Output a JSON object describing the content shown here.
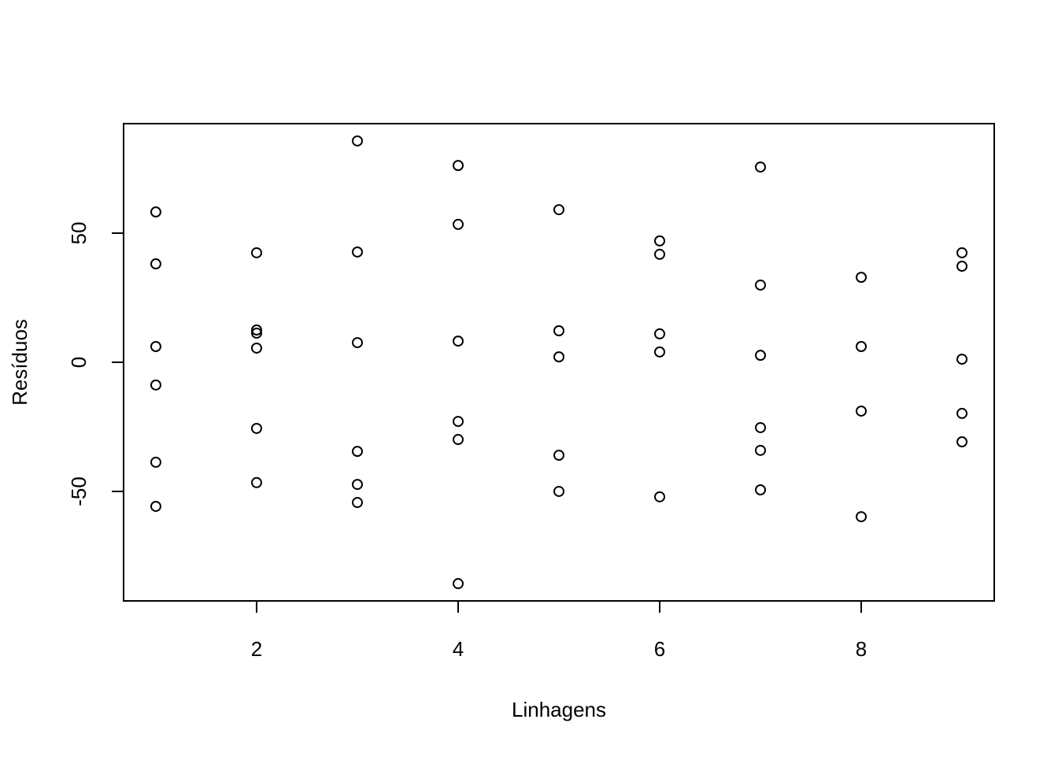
{
  "chart_data": {
    "type": "scatter",
    "x_label": "Linhagens",
    "y_label": "Resíduos",
    "x": [
      1,
      1,
      1,
      1,
      1,
      1,
      2,
      2,
      2,
      2,
      2,
      2,
      3,
      3,
      3,
      3,
      3,
      3,
      4,
      4,
      4,
      4,
      4,
      4,
      5,
      5,
      5,
      5,
      5,
      6,
      6,
      6,
      6,
      6,
      7,
      7,
      7,
      7,
      7,
      7,
      8,
      8,
      8,
      8,
      9,
      9,
      9,
      9,
      9
    ],
    "y": [
      58.2,
      38.1,
      6.1,
      -8.8,
      -38.7,
      -55.8,
      42.4,
      12.5,
      11.3,
      5.5,
      -25.6,
      -46.6,
      85.7,
      42.7,
      7.6,
      -34.5,
      -47.3,
      -54.3,
      76.2,
      53.4,
      8.2,
      -22.9,
      -29.9,
      -85.7,
      59.1,
      12.2,
      2.1,
      -36.0,
      -50.0,
      47.0,
      41.8,
      11.0,
      4.0,
      -52.1,
      75.6,
      29.9,
      2.7,
      -25.3,
      -34.1,
      -49.4,
      32.9,
      6.1,
      -18.9,
      -59.8,
      42.4,
      37.2,
      1.2,
      -19.8,
      -30.8
    ],
    "color": "#000000",
    "xlim": [
      0.68,
      9.32
    ],
    "ylim": [
      -92.4,
      92.4
    ],
    "xticks": [
      2,
      4,
      6,
      8
    ],
    "yticks": [
      -50,
      0,
      50
    ]
  }
}
